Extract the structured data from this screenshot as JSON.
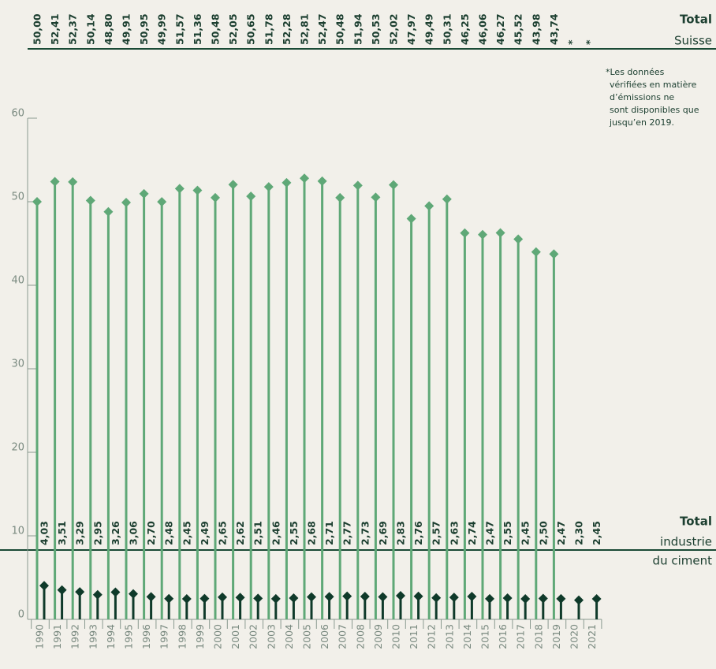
{
  "chart_data": {
    "type": "lollipop",
    "categories": [
      "1990",
      "1991",
      "1992",
      "1993",
      "1994",
      "1995",
      "1996",
      "1997",
      "1998",
      "1999",
      "2000",
      "2001",
      "2002",
      "2003",
      "2004",
      "2005",
      "2006",
      "2007",
      "2008",
      "2009",
      "2010",
      "2011",
      "2012",
      "2013",
      "2014",
      "2015",
      "2016",
      "2017",
      "2018",
      "2019",
      "2020",
      "2021"
    ],
    "series": [
      {
        "name": "Total",
        "label_lines": [
          "Suisse"
        ],
        "color": "#5fa877",
        "values": [
          50.0,
          52.41,
          52.37,
          50.14,
          48.8,
          49.91,
          50.95,
          49.99,
          51.57,
          51.36,
          50.48,
          52.05,
          50.65,
          51.78,
          52.28,
          52.81,
          52.47,
          50.48,
          51.94,
          50.53,
          52.02,
          47.97,
          49.49,
          50.31,
          46.25,
          46.06,
          46.27,
          45.52,
          43.98,
          43.74,
          null,
          null
        ],
        "value_labels": [
          "50,00",
          "52,41",
          "52,37",
          "50,14",
          "48,80",
          "49,91",
          "50,95",
          "49,99",
          "51,57",
          "51,36",
          "50,48",
          "52,05",
          "50,65",
          "51,78",
          "52,28",
          "52,81",
          "52,47",
          "50,48",
          "51,94",
          "50,53",
          "52,02",
          "47,97",
          "49,49",
          "50,31",
          "46,25",
          "46,06",
          "46,27",
          "45,52",
          "43,98",
          "43,74",
          "*",
          "*"
        ]
      },
      {
        "name": "Total",
        "label_lines": [
          "industrie",
          "du ciment"
        ],
        "color": "#0f3a2a",
        "values": [
          4.03,
          3.51,
          3.29,
          2.95,
          3.26,
          3.06,
          2.7,
          2.48,
          2.45,
          2.49,
          2.65,
          2.62,
          2.51,
          2.46,
          2.55,
          2.68,
          2.71,
          2.77,
          2.73,
          2.69,
          2.83,
          2.76,
          2.57,
          2.63,
          2.74,
          2.47,
          2.55,
          2.45,
          2.5,
          2.47,
          2.3,
          2.45
        ],
        "value_labels": [
          "4,03",
          "3,51",
          "3,29",
          "2,95",
          "3,26",
          "3,06",
          "2,70",
          "2,48",
          "2,45",
          "2,49",
          "2,65",
          "2,62",
          "2,51",
          "2,46",
          "2,55",
          "2,68",
          "2,71",
          "2,77",
          "2,73",
          "2,69",
          "2,83",
          "2,76",
          "2,57",
          "2,63",
          "2,74",
          "2,47",
          "2,55",
          "2,45",
          "2,50",
          "2,47",
          "2,30",
          "2,45"
        ]
      }
    ],
    "note_lines": [
      "*Les données",
      "vérifiées en matière",
      "d’émissions ne",
      "sont disponibles que",
      "jusqu’en 2019."
    ],
    "ylim": [
      0,
      60
    ],
    "yticks": [
      0,
      10,
      20,
      30,
      40,
      50,
      60
    ]
  }
}
